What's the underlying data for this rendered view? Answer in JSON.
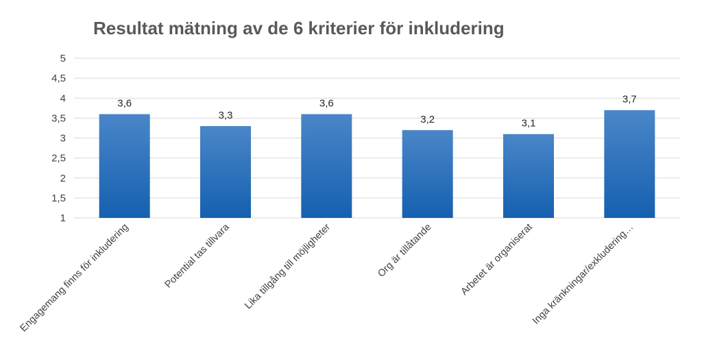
{
  "chart_data": {
    "type": "bar",
    "title": "Resultat mätning av de 6 kriterier för inkludering",
    "xlabel": "",
    "ylabel": "",
    "categories": [
      "Engagemang finns för inkludering",
      "Potential tas tillvara",
      "Lika tillgång till möjligheter",
      "Org är tillåtande",
      "Arbetet är organiserat",
      "Inga kränkningar/exkludering…"
    ],
    "values": [
      3.6,
      3.3,
      3.6,
      3.2,
      3.1,
      3.7
    ],
    "data_labels": [
      "3,6",
      "3,3",
      "3,6",
      "3,2",
      "3,1",
      "3,7"
    ],
    "ylim": [
      1,
      5
    ],
    "yticks": [
      1,
      1.5,
      2,
      2.5,
      3,
      3.5,
      4,
      4.5,
      5
    ],
    "ytick_labels": [
      "1",
      "1,5",
      "2",
      "2,5",
      "3",
      "3,5",
      "4",
      "4,5",
      "5"
    ],
    "grid": true,
    "legend": "none",
    "colors": {
      "bar_top": "#4a86c8",
      "bar_bottom": "#1560b0",
      "grid": "#d9d9d9",
      "title": "#595959"
    }
  }
}
